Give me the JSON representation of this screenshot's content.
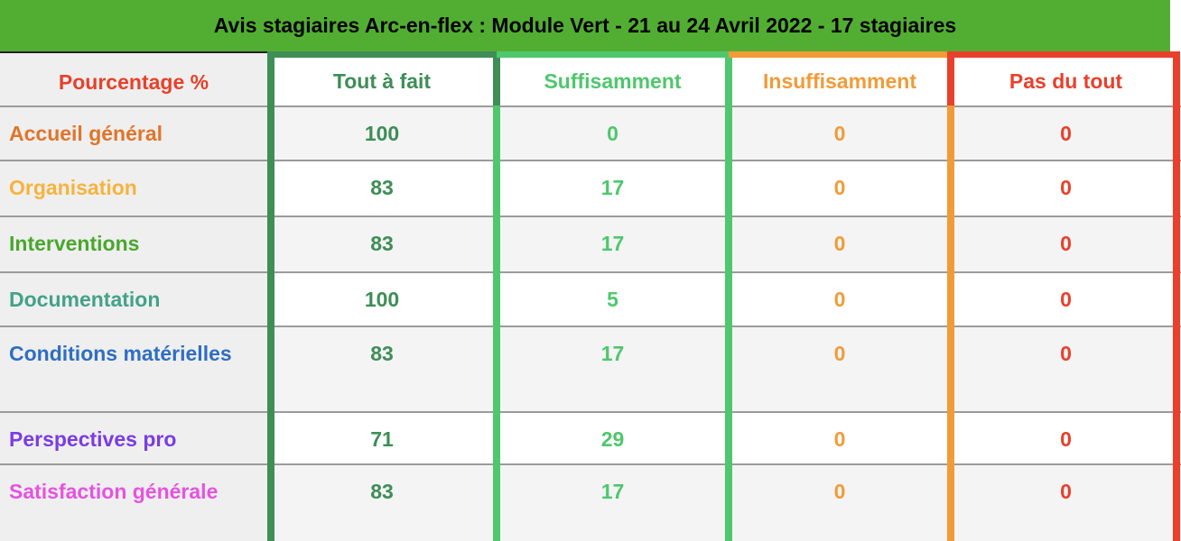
{
  "title": "Avis stagiaires Arc-en-flex : Module Vert - 21 au 24 Avril 2022 - 17 stagiaires",
  "colors": {
    "title_bar_bg": "#52ae32",
    "title_text": "#000000",
    "corner_text": "#e8402a",
    "corner_top_border": "#222222",
    "label_col_bg": "#efefef",
    "row_alt_bg": "#f4f4f5",
    "row_bg": "#ffffff",
    "divider": "#9b9b9b"
  },
  "table": {
    "corner_label": "Pourcentage %",
    "columns": [
      {
        "label": "Tout à fait",
        "color": "#3e8e56"
      },
      {
        "label": "Suffisamment",
        "color": "#4fc76c"
      },
      {
        "label": "Insuffisamment",
        "color": "#f19b38"
      },
      {
        "label": "Pas du tout",
        "color": "#e8402b"
      }
    ],
    "rows": [
      {
        "label": "Accueil général",
        "label_color": "#e0752a",
        "values": [
          100,
          0,
          0,
          0
        ]
      },
      {
        "label": "Organisation",
        "label_color": "#f6b33e",
        "values": [
          83,
          17,
          0,
          0
        ]
      },
      {
        "label": "Interventions",
        "label_color": "#49a72d",
        "values": [
          83,
          17,
          0,
          0
        ]
      },
      {
        "label": "Documentation",
        "label_color": "#43a287",
        "values": [
          100,
          5,
          0,
          0
        ]
      },
      {
        "label": "Conditions matérielles",
        "label_color": "#2f6ec3",
        "values": [
          83,
          17,
          0,
          0
        ]
      },
      {
        "label": "Perspectives pro",
        "label_color": "#7a3ce4",
        "values": [
          71,
          29,
          0,
          0
        ]
      },
      {
        "label": "Satisfaction générale",
        "label_color": "#e553e0",
        "values": [
          83,
          17,
          0,
          0
        ]
      }
    ]
  },
  "chart_data": {
    "type": "table",
    "title": "Avis stagiaires Arc-en-flex : Module Vert - 21 au 24 Avril 2022 - 17 stagiaires",
    "unit": "Pourcentage %",
    "categories": [
      "Accueil général",
      "Organisation",
      "Interventions",
      "Documentation",
      "Conditions matérielles",
      "Perspectives pro",
      "Satisfaction générale"
    ],
    "series": [
      {
        "name": "Tout à fait",
        "values": [
          100,
          83,
          83,
          100,
          83,
          71,
          83
        ]
      },
      {
        "name": "Suffisamment",
        "values": [
          0,
          17,
          17,
          5,
          17,
          29,
          17
        ]
      },
      {
        "name": "Insuffisamment",
        "values": [
          0,
          0,
          0,
          0,
          0,
          0,
          0
        ]
      },
      {
        "name": "Pas du tout",
        "values": [
          0,
          0,
          0,
          0,
          0,
          0,
          0
        ]
      }
    ]
  }
}
